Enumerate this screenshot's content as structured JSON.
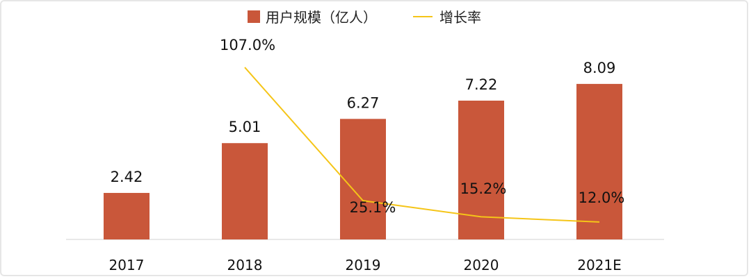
{
  "chart_data": {
    "type": "bar",
    "categories": [
      "2017",
      "2018",
      "2019",
      "2020",
      "2021E"
    ],
    "series": [
      {
        "name": "用户规模（亿人）",
        "type": "bar",
        "values": [
          2.42,
          5.01,
          6.27,
          7.22,
          8.09
        ],
        "labels": [
          "2.42",
          "5.01",
          "6.27",
          "7.22",
          "8.09"
        ],
        "color": "#C9573A"
      },
      {
        "name": "增长率",
        "type": "line",
        "values": [
          null,
          107.0,
          25.1,
          15.2,
          12.0
        ],
        "labels": [
          null,
          "107.0%",
          "25.1%",
          "15.2%",
          "12.0%"
        ],
        "color": "#F5C518"
      }
    ],
    "legend_position": "top-center",
    "grid": false
  }
}
